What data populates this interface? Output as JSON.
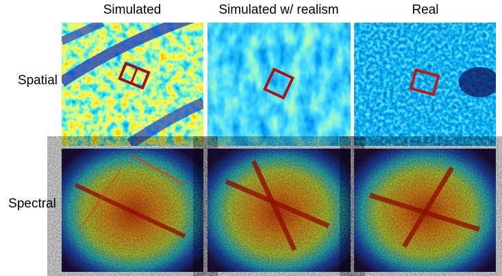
{
  "columns": [
    "Simulated",
    "Simulated w/ realism",
    "Real"
  ],
  "rows": [
    "Spatial",
    "Spectral"
  ]
}
